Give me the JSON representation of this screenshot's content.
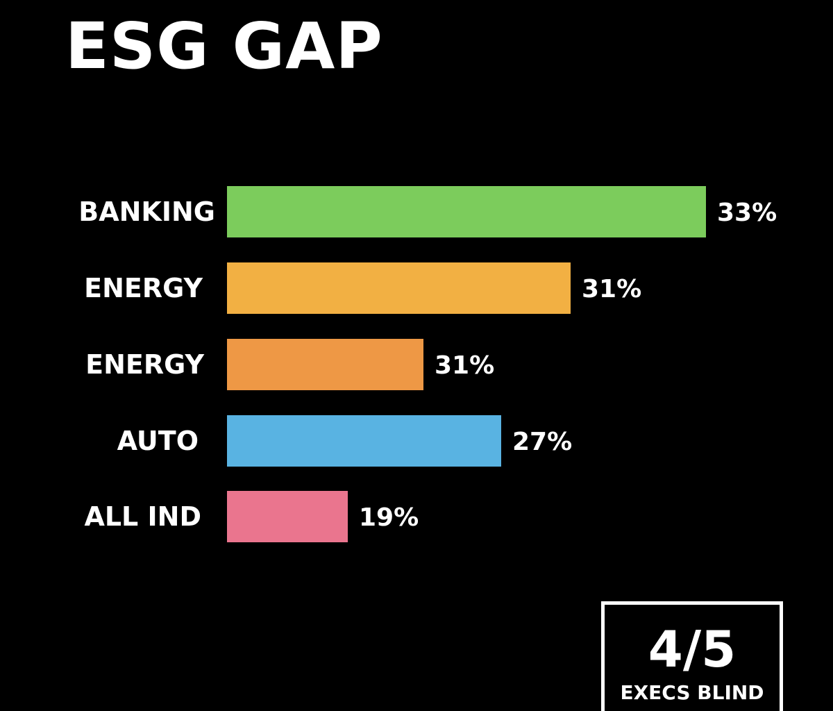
{
  "title": "ESG GAP",
  "stat": {
    "value": "4/5",
    "caption": "EXECS BLIND"
  },
  "chart_data": {
    "type": "bar",
    "orientation": "horizontal",
    "categories": [
      "BANKING",
      "ENERGY",
      "ENERGY",
      "AUTO",
      "ALL IND"
    ],
    "values": [
      33,
      31,
      31,
      27,
      19
    ],
    "value_labels": [
      "33%",
      "31%",
      "31%",
      "27%",
      "19%"
    ],
    "colors": [
      "#7ccc5c",
      "#f2b043",
      "#ee9845",
      "#59b3e2",
      "#ea758e"
    ],
    "title": "ESG GAP",
    "grid": false,
    "legend": "none"
  }
}
